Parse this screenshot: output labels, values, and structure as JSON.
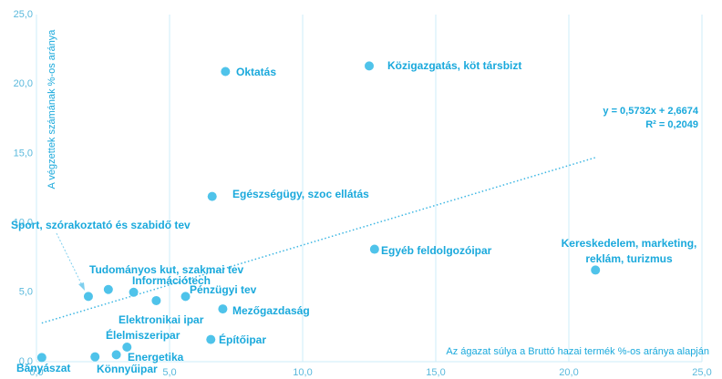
{
  "chart_data": {
    "type": "scatter",
    "y_label": "A végzettek számának %-os aránya",
    "x_label": "Az ágazat súlya a Bruttó hazai termék %-os aránya alapján",
    "color": "#4fc3ea",
    "grid": "vertical",
    "xlim": [
      0,
      25
    ],
    "ylim": [
      0,
      25
    ],
    "xticks": [
      {
        "value": 0,
        "label": "0,0"
      },
      {
        "value": 5,
        "label": "5,0"
      },
      {
        "value": 10,
        "label": "10,0"
      },
      {
        "value": 15,
        "label": "15,0"
      },
      {
        "value": 20,
        "label": "20,0"
      },
      {
        "value": 25,
        "label": "25,0"
      }
    ],
    "yticks": [
      {
        "value": 0,
        "label": "0,0"
      },
      {
        "value": 5,
        "label": "5,0"
      },
      {
        "value": 10,
        "label": "10,0"
      },
      {
        "value": 15,
        "label": "15,0"
      },
      {
        "value": 20,
        "label": "20,0"
      },
      {
        "value": 25,
        "label": "25,0"
      }
    ],
    "point_labels": [
      "Oktatás",
      "Közigazgatás, köt társbizt",
      "Egészségügy, szoc ellátás",
      "Egyéb feldolgozóipar",
      "Kereskedelem, marketing, reklám, turizmus",
      "Sport, szórakoztató és szabidő tev",
      "Tudományos kut, szakmai tev",
      "Információtech",
      "Pénzügyi tev",
      "Elektronikai ipar",
      "Mezőgazdaság",
      "Építőipar",
      "Élelmiszeripar",
      "Energetika",
      "Könnyűipar",
      "Bányászat"
    ],
    "x": [
      7.1,
      12.5,
      6.6,
      12.7,
      21.0,
      1.95,
      2.7,
      3.65,
      5.6,
      4.5,
      7.0,
      6.55,
      3.4,
      3.0,
      2.2,
      0.2
    ],
    "values": [
      20.9,
      21.3,
      11.9,
      8.1,
      6.6,
      4.7,
      5.2,
      5.0,
      4.7,
      4.4,
      3.8,
      1.6,
      1.05,
      0.5,
      0.35,
      0.3
    ],
    "trendline": {
      "slope": 0.5732,
      "intercept": 2.6674,
      "r2": 0.2049,
      "equation_label": "y = 0,5732x + 2,6674",
      "r2_label": "R² = 0,2049"
    }
  }
}
